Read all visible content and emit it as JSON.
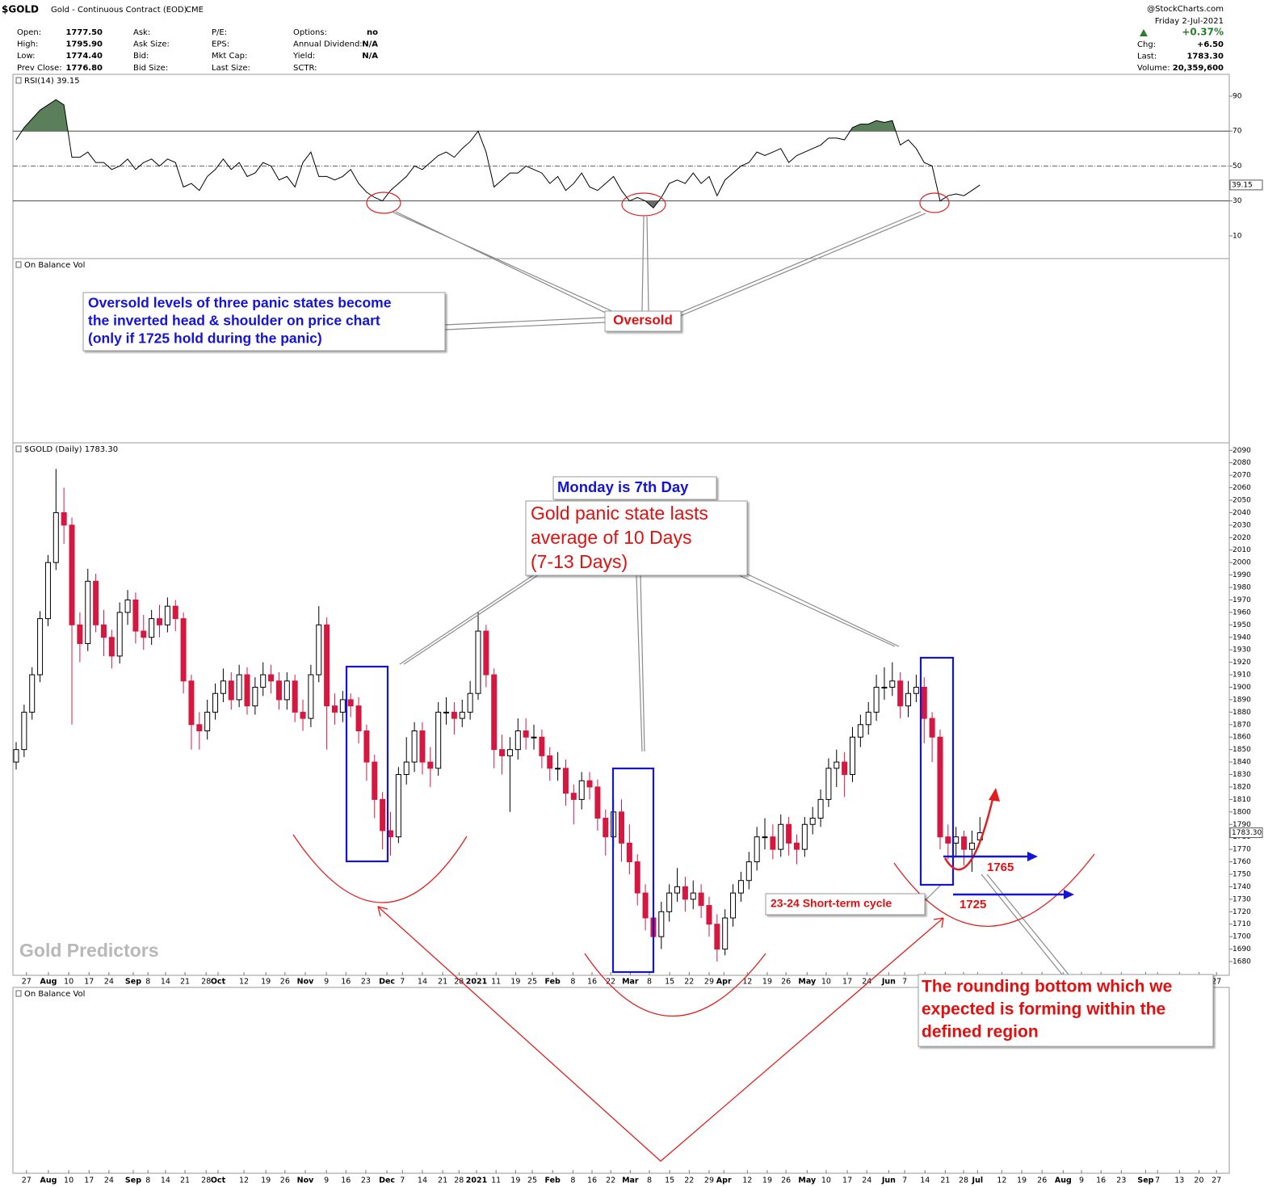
{
  "header": {
    "symbol": "$GOLD",
    "name": "Gold - Continuous Contract (EOD)",
    "exchange": "CME",
    "source": "@StockCharts.com",
    "date": "Friday 2-Jul-2021",
    "change_pct": "+0.37%",
    "quote": [
      [
        [
          "Open:",
          "1777.50"
        ],
        [
          "High:",
          "1795.90"
        ],
        [
          "Low:",
          "1774.40"
        ],
        [
          "Prev Close:",
          "1776.80"
        ]
      ],
      [
        [
          "Ask:"
        ],
        [
          "Ask Size:"
        ],
        [
          "Bid:"
        ],
        [
          "Bid Size:"
        ]
      ],
      [
        [
          "P/E:"
        ],
        [
          "EPS:"
        ],
        [
          "Mkt Cap:"
        ],
        [
          "Last Size:"
        ]
      ],
      [
        [
          "Options:",
          "no"
        ],
        [
          "Annual Dividend:",
          "N/A"
        ],
        [
          "Yield:",
          "N/A"
        ],
        [
          "SCTR:"
        ]
      ]
    ],
    "stats": [
      [
        "Chg:",
        "+6.50"
      ],
      [
        "Last:",
        "1783.30"
      ],
      [
        "Volume:",
        "20,359,600"
      ]
    ]
  },
  "annotations": {
    "rsi_note": [
      "Oversold levels of three panic states become",
      "the inverted head & shoulder on price chart",
      "(only if 1725 hold during the panic)"
    ],
    "oversold": "Oversold",
    "monday": "Monday is 7th Day",
    "panic": [
      "Gold panic state lasts",
      "average of 10 Days",
      "(7-13 Days)"
    ],
    "cycle": "23-24 Short-term cycle",
    "level_high": "1765",
    "level_low": "1725",
    "rounding": [
      "The rounding bottom which we",
      "expected is forming within the",
      "defined region"
    ],
    "watermark": "Gold Predictors"
  },
  "chart_data": [
    {
      "type": "line",
      "title": "RSI(14) 39.15",
      "last_label": "39.15",
      "color": "#000000",
      "overbought_color": "#5b7f5b",
      "oversold_color": "#6b6b6b",
      "levels": {
        "overbought": 70,
        "midline": 50,
        "oversold": 30
      },
      "xlim": [
        0,
        304
      ],
      "ylim": [
        -3,
        102.5
      ],
      "yticks": [
        10,
        30,
        50,
        70,
        90
      ],
      "x": [
        0,
        2,
        4,
        6,
        8,
        10,
        12,
        14,
        16,
        18,
        20,
        22,
        24,
        26,
        28,
        30,
        32,
        34,
        36,
        38,
        40,
        42,
        44,
        46,
        48,
        50,
        52,
        54,
        56,
        58,
        60,
        62,
        64,
        66,
        68,
        70,
        72,
        74,
        76,
        78,
        80,
        82,
        84,
        86,
        88,
        90,
        92,
        94,
        96,
        98,
        100,
        102,
        104,
        106,
        108,
        110,
        112,
        114,
        116,
        118,
        120,
        122,
        124,
        126,
        128,
        130,
        132,
        134,
        136,
        138,
        140,
        142,
        144,
        146,
        148,
        150,
        152,
        154,
        156,
        158,
        160,
        162,
        164,
        166,
        168,
        170,
        172,
        174,
        176,
        178,
        180,
        182,
        184,
        186,
        188,
        190,
        192,
        194,
        196,
        198,
        200,
        202,
        204,
        206,
        208,
        210,
        212,
        214,
        216,
        218,
        220,
        222,
        224,
        226,
        228,
        230,
        232,
        234,
        236,
        238,
        240,
        242
      ],
      "values": [
        65,
        72,
        77,
        82,
        85,
        88,
        85,
        55,
        55,
        58,
        52,
        52,
        48,
        50,
        54,
        48,
        52,
        54,
        50,
        54,
        52,
        38,
        40,
        36,
        44,
        48,
        54,
        48,
        52,
        44,
        46,
        52,
        50,
        42,
        44,
        38,
        52,
        58,
        44,
        44,
        42,
        44,
        48,
        40,
        35,
        32,
        30,
        36,
        40,
        44,
        50,
        48,
        52,
        56,
        58,
        55,
        60,
        64,
        70,
        58,
        38,
        42,
        46,
        46,
        50,
        48,
        46,
        40,
        44,
        36,
        40,
        46,
        38,
        36,
        40,
        44,
        36,
        30,
        32,
        30,
        26,
        32,
        40,
        42,
        40,
        46,
        40,
        44,
        33,
        42,
        46,
        50,
        52,
        58,
        56,
        58,
        60,
        52,
        56,
        58,
        60,
        62,
        66,
        66,
        65,
        72,
        74,
        74,
        76,
        75,
        76,
        62,
        65,
        60,
        52,
        50,
        30,
        33,
        34,
        33,
        36,
        39.15
      ]
    },
    {
      "type": "panel",
      "title": "On Balance Vol"
    },
    {
      "type": "candlestick",
      "title": "$GOLD (Daily) 1783.30",
      "last_label": "1783.30",
      "up_color": "#ffffff",
      "down_color": "#d6173f",
      "xlim": [
        0,
        304
      ],
      "ylim": [
        1669,
        2096
      ],
      "yticks": [
        1680,
        1690,
        1700,
        1710,
        1720,
        1730,
        1740,
        1750,
        1760,
        1770,
        1780,
        1790,
        1800,
        1810,
        1820,
        1830,
        1840,
        1850,
        1860,
        1870,
        1880,
        1890,
        1900,
        1910,
        1920,
        1930,
        1940,
        1950,
        1960,
        1970,
        1980,
        1990,
        2000,
        2010,
        2020,
        2030,
        2040,
        2050,
        2060,
        2070,
        2080,
        2090
      ],
      "xticks": [
        {
          "value": 2.6,
          "label": "27"
        },
        {
          "value": 8.1,
          "label": "Aug"
        },
        {
          "value": 13.2,
          "label": "10"
        },
        {
          "value": 18.3,
          "label": "17"
        },
        {
          "value": 23.3,
          "label": "24"
        },
        {
          "value": 29.4,
          "label": "Sep"
        },
        {
          "value": 33.1,
          "label": "8"
        },
        {
          "value": 37.5,
          "label": "14"
        },
        {
          "value": 42.4,
          "label": "21"
        },
        {
          "value": 47.7,
          "label": "28"
        },
        {
          "value": 50.7,
          "label": "Oct"
        },
        {
          "value": 57.2,
          "label": "12"
        },
        {
          "value": 62.7,
          "label": "19"
        },
        {
          "value": 67.5,
          "label": "26"
        },
        {
          "value": 72.6,
          "label": "Nov"
        },
        {
          "value": 77.9,
          "label": "9"
        },
        {
          "value": 82.8,
          "label": "16"
        },
        {
          "value": 87.8,
          "label": "23"
        },
        {
          "value": 93.1,
          "label": "Dec"
        },
        {
          "value": 97,
          "label": "7"
        },
        {
          "value": 102,
          "label": "14"
        },
        {
          "value": 107.1,
          "label": "21"
        },
        {
          "value": 111.2,
          "label": "28"
        },
        {
          "value": 115.6,
          "label": "2021"
        },
        {
          "value": 120.5,
          "label": "11"
        },
        {
          "value": 125.4,
          "label": "19"
        },
        {
          "value": 129.6,
          "label": "25"
        },
        {
          "value": 134.7,
          "label": "Feb"
        },
        {
          "value": 139.8,
          "label": "8"
        },
        {
          "value": 144.6,
          "label": "16"
        },
        {
          "value": 149.3,
          "label": "22"
        },
        {
          "value": 154.2,
          "label": "Mar"
        },
        {
          "value": 159,
          "label": "8"
        },
        {
          "value": 164.1,
          "label": "15"
        },
        {
          "value": 169,
          "label": "22"
        },
        {
          "value": 174,
          "label": "29"
        },
        {
          "value": 177.7,
          "label": "Apr"
        },
        {
          "value": 183.6,
          "label": "12"
        },
        {
          "value": 188.6,
          "label": "19"
        },
        {
          "value": 193.3,
          "label": "26"
        },
        {
          "value": 198.6,
          "label": "May"
        },
        {
          "value": 203.4,
          "label": "10"
        },
        {
          "value": 208.7,
          "label": "17"
        },
        {
          "value": 213.6,
          "label": "24"
        },
        {
          "value": 219.1,
          "label": "Jun"
        },
        {
          "value": 223.1,
          "label": "7"
        },
        {
          "value": 228.2,
          "label": "14"
        },
        {
          "value": 233.3,
          "label": "21"
        },
        {
          "value": 237.9,
          "label": "28"
        },
        {
          "value": 241.4,
          "label": "Jul"
        },
        {
          "value": 247.5,
          "label": "12"
        },
        {
          "value": 252.5,
          "label": "19"
        },
        {
          "value": 257.6,
          "label": "26"
        },
        {
          "value": 262.9,
          "label": "Aug"
        },
        {
          "value": 267.5,
          "label": "9"
        },
        {
          "value": 272.4,
          "label": "16"
        },
        {
          "value": 277.5,
          "label": "23"
        },
        {
          "value": 283.6,
          "label": "Sep"
        },
        {
          "value": 286.6,
          "label": "7"
        },
        {
          "value": 292.1,
          "label": "13"
        },
        {
          "value": 297,
          "label": "20"
        },
        {
          "value": 301.4,
          "label": "27"
        }
      ],
      "x": [
        0,
        2,
        4,
        6,
        8,
        10,
        12,
        14,
        16,
        18,
        20,
        22,
        24,
        26,
        28,
        30,
        32,
        34,
        36,
        38,
        40,
        42,
        44,
        46,
        48,
        50,
        52,
        54,
        56,
        58,
        60,
        62,
        64,
        66,
        68,
        70,
        72,
        74,
        76,
        78,
        80,
        82,
        84,
        86,
        88,
        90,
        92,
        94,
        96,
        98,
        100,
        102,
        104,
        106,
        108,
        110,
        112,
        114,
        116,
        118,
        120,
        122,
        124,
        126,
        128,
        130,
        132,
        134,
        136,
        138,
        140,
        142,
        144,
        146,
        148,
        150,
        152,
        154,
        156,
        158,
        160,
        162,
        164,
        166,
        168,
        170,
        172,
        174,
        176,
        178,
        180,
        182,
        184,
        186,
        188,
        190,
        192,
        194,
        196,
        198,
        200,
        202,
        204,
        206,
        208,
        210,
        212,
        214,
        216,
        218,
        220,
        222,
        224,
        226,
        228,
        230,
        232,
        234,
        236,
        238,
        240,
        242
      ],
      "open": [
        1840,
        1850,
        1880,
        1910,
        1955,
        2000,
        2040,
        2030,
        1950,
        1935,
        1985,
        1950,
        1940,
        1925,
        1960,
        1970,
        1945,
        1940,
        1955,
        1950,
        1965,
        1955,
        1905,
        1870,
        1865,
        1880,
        1895,
        1905,
        1890,
        1910,
        1885,
        1900,
        1910,
        1905,
        1890,
        1905,
        1880,
        1875,
        1910,
        1950,
        1885,
        1880,
        1890,
        1885,
        1865,
        1840,
        1810,
        1785,
        1780,
        1830,
        1840,
        1865,
        1840,
        1835,
        1880,
        1880,
        1875,
        1880,
        1895,
        1945,
        1910,
        1850,
        1845,
        1850,
        1865,
        1860,
        1860,
        1845,
        1835,
        1835,
        1815,
        1810,
        1825,
        1820,
        1795,
        1780,
        1800,
        1775,
        1760,
        1735,
        1715,
        1700,
        1720,
        1735,
        1740,
        1730,
        1735,
        1725,
        1710,
        1690,
        1715,
        1735,
        1745,
        1760,
        1780,
        1780,
        1770,
        1790,
        1775,
        1770,
        1790,
        1795,
        1810,
        1835,
        1840,
        1830,
        1860,
        1870,
        1880,
        1900,
        1900,
        1905,
        1885,
        1895,
        1900,
        1875,
        1860,
        1780,
        1775,
        1780,
        1770,
        1777.5
      ],
      "high": [
        1856,
        1886,
        1916,
        1961,
        2006,
        2075,
        2060,
        2036,
        1960,
        1995,
        1991,
        1962,
        1946,
        1968,
        1978,
        1976,
        1958,
        1962,
        1966,
        1972,
        1970,
        1960,
        1910,
        1880,
        1890,
        1903,
        1915,
        1912,
        1918,
        1916,
        1908,
        1920,
        1918,
        1912,
        1912,
        1910,
        1890,
        1918,
        1965,
        1956,
        1895,
        1897,
        1895,
        1892,
        1870,
        1846,
        1816,
        1800,
        1836,
        1860,
        1872,
        1872,
        1852,
        1888,
        1892,
        1888,
        1890,
        1905,
        1960,
        1950,
        1915,
        1862,
        1860,
        1875,
        1875,
        1870,
        1866,
        1852,
        1848,
        1842,
        1822,
        1832,
        1832,
        1826,
        1802,
        1810,
        1810,
        1790,
        1766,
        1742,
        1722,
        1728,
        1742,
        1755,
        1748,
        1745,
        1742,
        1732,
        1718,
        1722,
        1742,
        1752,
        1768,
        1788,
        1795,
        1790,
        1798,
        1796,
        1782,
        1796,
        1804,
        1818,
        1843,
        1850,
        1848,
        1868,
        1878,
        1888,
        1910,
        1916,
        1920,
        1912,
        1905,
        1910,
        1908,
        1880,
        1866,
        1790,
        1788,
        1785,
        1785,
        1795.9
      ],
      "low": [
        1834,
        1844,
        1874,
        1904,
        1949,
        1994,
        2015,
        1870,
        1920,
        1929,
        1944,
        1925,
        1915,
        1919,
        1950,
        1935,
        1930,
        1934,
        1940,
        1944,
        1945,
        1895,
        1850,
        1850,
        1858,
        1874,
        1888,
        1882,
        1884,
        1878,
        1878,
        1893,
        1895,
        1882,
        1882,
        1872,
        1865,
        1868,
        1904,
        1850,
        1870,
        1872,
        1876,
        1855,
        1825,
        1795,
        1770,
        1765,
        1775,
        1822,
        1832,
        1830,
        1820,
        1829,
        1870,
        1862,
        1868,
        1874,
        1890,
        1900,
        1835,
        1830,
        1800,
        1842,
        1850,
        1850,
        1835,
        1825,
        1825,
        1805,
        1790,
        1802,
        1810,
        1785,
        1765,
        1772,
        1760,
        1750,
        1725,
        1705,
        1680,
        1690,
        1712,
        1728,
        1720,
        1722,
        1715,
        1700,
        1680,
        1685,
        1708,
        1728,
        1738,
        1753,
        1770,
        1762,
        1764,
        1765,
        1758,
        1764,
        1782,
        1788,
        1804,
        1820,
        1812,
        1824,
        1852,
        1862,
        1873,
        1890,
        1893,
        1875,
        1876,
        1888,
        1855,
        1840,
        1770,
        1762,
        1765,
        1757,
        1752,
        1774.4
      ],
      "close": [
        1850,
        1880,
        1910,
        1955,
        2000,
        2040,
        2030,
        1950,
        1935,
        1985,
        1950,
        1940,
        1925,
        1960,
        1970,
        1945,
        1940,
        1955,
        1950,
        1965,
        1955,
        1905,
        1870,
        1865,
        1880,
        1895,
        1905,
        1890,
        1910,
        1885,
        1900,
        1910,
        1905,
        1890,
        1905,
        1880,
        1875,
        1910,
        1950,
        1885,
        1880,
        1890,
        1885,
        1865,
        1840,
        1810,
        1785,
        1780,
        1830,
        1840,
        1865,
        1840,
        1835,
        1880,
        1880,
        1875,
        1880,
        1895,
        1945,
        1910,
        1850,
        1845,
        1850,
        1865,
        1860,
        1860,
        1845,
        1835,
        1835,
        1815,
        1810,
        1825,
        1820,
        1795,
        1780,
        1800,
        1775,
        1760,
        1735,
        1715,
        1700,
        1720,
        1735,
        1740,
        1730,
        1735,
        1725,
        1710,
        1690,
        1715,
        1735,
        1745,
        1760,
        1780,
        1780,
        1770,
        1790,
        1775,
        1770,
        1790,
        1795,
        1810,
        1835,
        1840,
        1830,
        1860,
        1870,
        1880,
        1900,
        1900,
        1905,
        1885,
        1895,
        1900,
        1875,
        1860,
        1780,
        1775,
        1780,
        1770,
        1775,
        1783.3
      ]
    },
    {
      "type": "panel",
      "title": "On Balance Vol"
    }
  ]
}
